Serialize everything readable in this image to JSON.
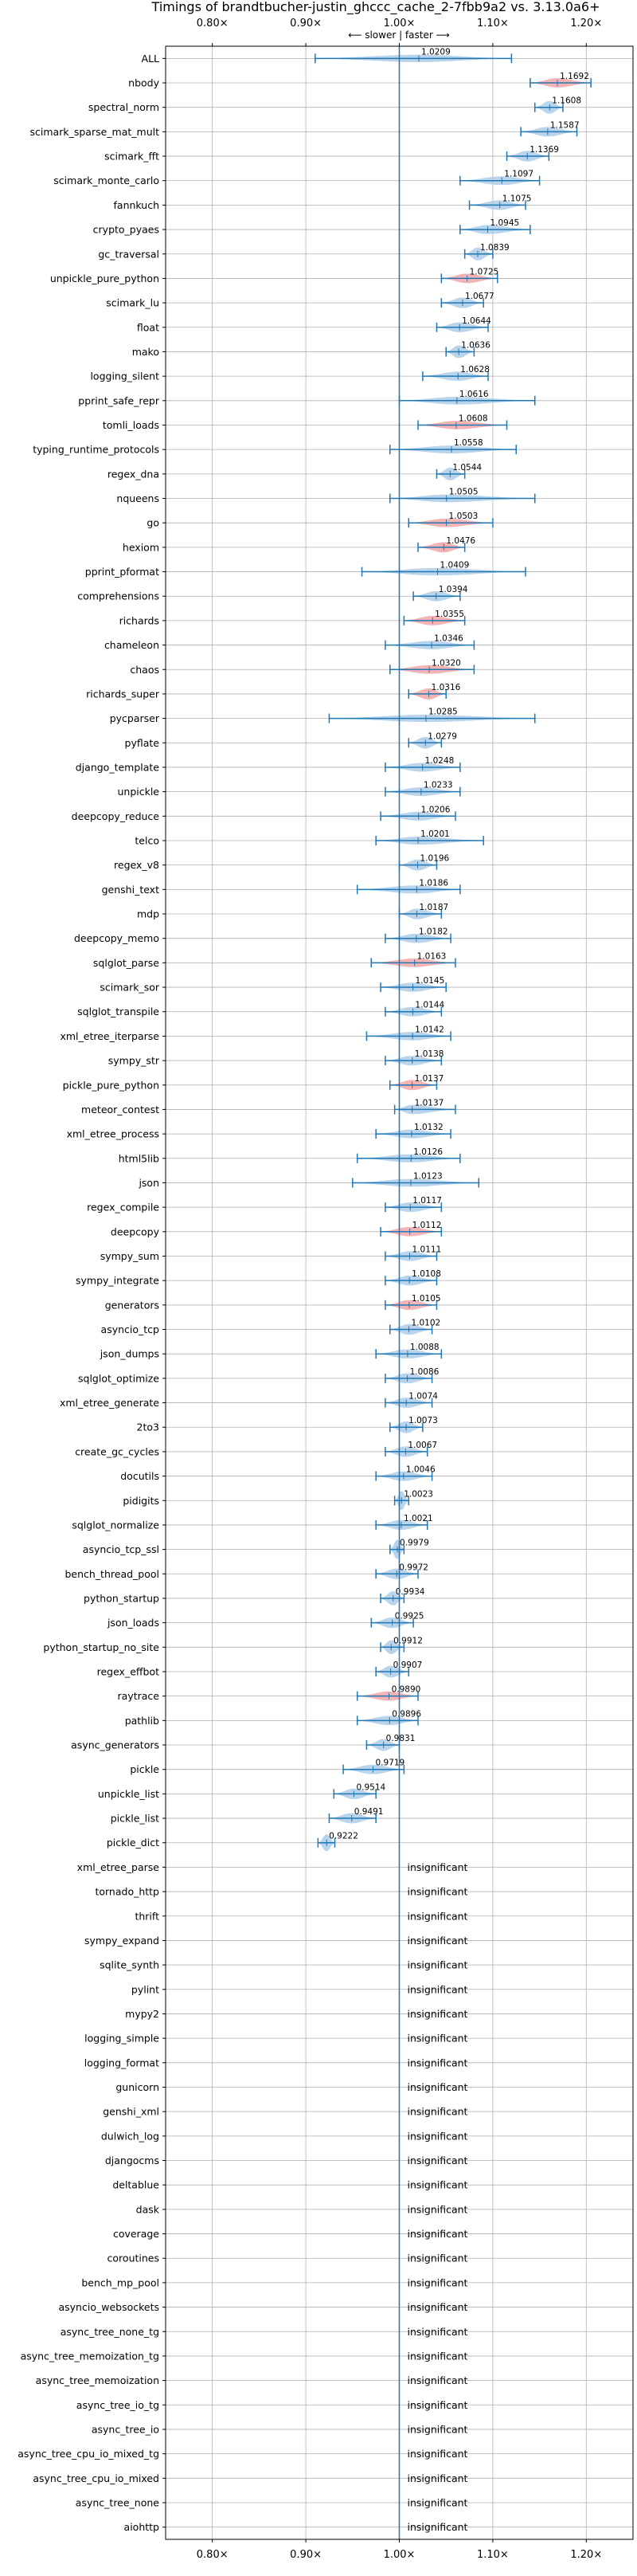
{
  "chart_data": {
    "type": "violin",
    "title": "Timings of brandtbucher-justin_ghccc_cache_2-7fbb9a2 vs. 3.13.0a6+",
    "direction_label": "⟵ slower | faster ⟶",
    "xlim": [
      0.75,
      1.25
    ],
    "xticks": [
      0.8,
      0.9,
      1.0,
      1.1,
      1.2
    ],
    "xtick_labels": [
      "0.80×",
      "0.90×",
      "1.00×",
      "1.10×",
      "1.20×"
    ],
    "reference_line": 1.0,
    "grid": true,
    "colors": {
      "faster": "#1f77b4",
      "significant": "#f4a6a6",
      "normal": "#aecde8",
      "axis": "#000000",
      "grid": "#b0b0b0"
    },
    "insignificant_label": "insignificant",
    "benchmarks": [
      {
        "name": "ALL",
        "value": 1.0209,
        "label": "1.0209",
        "low": 0.91,
        "high": 1.12,
        "hl": false
      },
      {
        "name": "nbody",
        "value": 1.1692,
        "label": "1.1692",
        "low": 1.14,
        "high": 1.205,
        "hl": true
      },
      {
        "name": "spectral_norm",
        "value": 1.1608,
        "label": "1.1608",
        "low": 1.145,
        "high": 1.175,
        "hl": false
      },
      {
        "name": "scimark_sparse_mat_mult",
        "value": 1.1587,
        "label": "1.1587",
        "low": 1.13,
        "high": 1.19,
        "hl": false
      },
      {
        "name": "scimark_fft",
        "value": 1.1369,
        "label": "1.1369",
        "low": 1.115,
        "high": 1.16,
        "hl": false
      },
      {
        "name": "scimark_monte_carlo",
        "value": 1.1097,
        "label": "1.1097",
        "low": 1.065,
        "high": 1.15,
        "hl": false
      },
      {
        "name": "fannkuch",
        "value": 1.1075,
        "label": "1.1075",
        "low": 1.075,
        "high": 1.135,
        "hl": false
      },
      {
        "name": "crypto_pyaes",
        "value": 1.0945,
        "label": "1.0945",
        "low": 1.065,
        "high": 1.14,
        "hl": false
      },
      {
        "name": "gc_traversal",
        "value": 1.0839,
        "label": "1.0839",
        "low": 1.07,
        "high": 1.1,
        "hl": false
      },
      {
        "name": "unpickle_pure_python",
        "value": 1.0725,
        "label": "1.0725",
        "low": 1.045,
        "high": 1.105,
        "hl": true
      },
      {
        "name": "scimark_lu",
        "value": 1.0677,
        "label": "1.0677",
        "low": 1.045,
        "high": 1.09,
        "hl": false
      },
      {
        "name": "float",
        "value": 1.0644,
        "label": "1.0644",
        "low": 1.04,
        "high": 1.095,
        "hl": false
      },
      {
        "name": "mako",
        "value": 1.0636,
        "label": "1.0636",
        "low": 1.05,
        "high": 1.08,
        "hl": false
      },
      {
        "name": "logging_silent",
        "value": 1.0628,
        "label": "1.0628",
        "low": 1.025,
        "high": 1.095,
        "hl": false
      },
      {
        "name": "pprint_safe_repr",
        "value": 1.0616,
        "label": "1.0616",
        "low": 1.0,
        "high": 1.145,
        "hl": false
      },
      {
        "name": "tomli_loads",
        "value": 1.0608,
        "label": "1.0608",
        "low": 1.02,
        "high": 1.115,
        "hl": true
      },
      {
        "name": "typing_runtime_protocols",
        "value": 1.0558,
        "label": "1.0558",
        "low": 0.99,
        "high": 1.125,
        "hl": false
      },
      {
        "name": "regex_dna",
        "value": 1.0544,
        "label": "1.0544",
        "low": 1.04,
        "high": 1.07,
        "hl": false
      },
      {
        "name": "nqueens",
        "value": 1.0505,
        "label": "1.0505",
        "low": 0.99,
        "high": 1.145,
        "hl": false
      },
      {
        "name": "go",
        "value": 1.0503,
        "label": "1.0503",
        "low": 1.01,
        "high": 1.1,
        "hl": true
      },
      {
        "name": "hexiom",
        "value": 1.0476,
        "label": "1.0476",
        "low": 1.02,
        "high": 1.07,
        "hl": true
      },
      {
        "name": "pprint_pformat",
        "value": 1.0409,
        "label": "1.0409",
        "low": 0.96,
        "high": 1.135,
        "hl": false
      },
      {
        "name": "comprehensions",
        "value": 1.0394,
        "label": "1.0394",
        "low": 1.015,
        "high": 1.065,
        "hl": false
      },
      {
        "name": "richards",
        "value": 1.0355,
        "label": "1.0355",
        "low": 1.005,
        "high": 1.07,
        "hl": true
      },
      {
        "name": "chameleon",
        "value": 1.0346,
        "label": "1.0346",
        "low": 0.985,
        "high": 1.08,
        "hl": false
      },
      {
        "name": "chaos",
        "value": 1.032,
        "label": "1.0320",
        "low": 0.99,
        "high": 1.08,
        "hl": true
      },
      {
        "name": "richards_super",
        "value": 1.0316,
        "label": "1.0316",
        "low": 1.01,
        "high": 1.05,
        "hl": true
      },
      {
        "name": "pycparser",
        "value": 1.0285,
        "label": "1.0285",
        "low": 0.925,
        "high": 1.145,
        "hl": false
      },
      {
        "name": "pyflate",
        "value": 1.0279,
        "label": "1.0279",
        "low": 1.01,
        "high": 1.045,
        "hl": false
      },
      {
        "name": "django_template",
        "value": 1.0248,
        "label": "1.0248",
        "low": 0.985,
        "high": 1.065,
        "hl": false
      },
      {
        "name": "unpickle",
        "value": 1.0233,
        "label": "1.0233",
        "low": 0.985,
        "high": 1.065,
        "hl": false
      },
      {
        "name": "deepcopy_reduce",
        "value": 1.0206,
        "label": "1.0206",
        "low": 0.98,
        "high": 1.06,
        "hl": false
      },
      {
        "name": "telco",
        "value": 1.0201,
        "label": "1.0201",
        "low": 0.975,
        "high": 1.09,
        "hl": false
      },
      {
        "name": "regex_v8",
        "value": 1.0196,
        "label": "1.0196",
        "low": 1.0,
        "high": 1.04,
        "hl": false
      },
      {
        "name": "genshi_text",
        "value": 1.0186,
        "label": "1.0186",
        "low": 0.955,
        "high": 1.065,
        "hl": false
      },
      {
        "name": "mdp",
        "value": 1.0187,
        "label": "1.0187",
        "low": 1.0,
        "high": 1.045,
        "hl": false
      },
      {
        "name": "deepcopy_memo",
        "value": 1.0182,
        "label": "1.0182",
        "low": 0.985,
        "high": 1.055,
        "hl": false
      },
      {
        "name": "sqlglot_parse",
        "value": 1.0163,
        "label": "1.0163",
        "low": 0.97,
        "high": 1.06,
        "hl": true
      },
      {
        "name": "scimark_sor",
        "value": 1.0145,
        "label": "1.0145",
        "low": 0.98,
        "high": 1.05,
        "hl": false
      },
      {
        "name": "sqlglot_transpile",
        "value": 1.0144,
        "label": "1.0144",
        "low": 0.985,
        "high": 1.045,
        "hl": false
      },
      {
        "name": "xml_etree_iterparse",
        "value": 1.0142,
        "label": "1.0142",
        "low": 0.965,
        "high": 1.055,
        "hl": false
      },
      {
        "name": "sympy_str",
        "value": 1.0138,
        "label": "1.0138",
        "low": 0.985,
        "high": 1.045,
        "hl": false
      },
      {
        "name": "pickle_pure_python",
        "value": 1.0137,
        "label": "1.0137",
        "low": 0.99,
        "high": 1.04,
        "hl": true
      },
      {
        "name": "meteor_contest",
        "value": 1.0137,
        "label": "1.0137",
        "low": 0.995,
        "high": 1.06,
        "hl": false
      },
      {
        "name": "xml_etree_process",
        "value": 1.0132,
        "label": "1.0132",
        "low": 0.975,
        "high": 1.055,
        "hl": false
      },
      {
        "name": "html5lib",
        "value": 1.0126,
        "label": "1.0126",
        "low": 0.955,
        "high": 1.065,
        "hl": false
      },
      {
        "name": "json",
        "value": 1.0123,
        "label": "1.0123",
        "low": 0.95,
        "high": 1.085,
        "hl": false
      },
      {
        "name": "regex_compile",
        "value": 1.0117,
        "label": "1.0117",
        "low": 0.985,
        "high": 1.045,
        "hl": false
      },
      {
        "name": "deepcopy",
        "value": 1.0112,
        "label": "1.0112",
        "low": 0.98,
        "high": 1.045,
        "hl": true
      },
      {
        "name": "sympy_sum",
        "value": 1.0111,
        "label": "1.0111",
        "low": 0.985,
        "high": 1.04,
        "hl": false
      },
      {
        "name": "sympy_integrate",
        "value": 1.0108,
        "label": "1.0108",
        "low": 0.985,
        "high": 1.04,
        "hl": false
      },
      {
        "name": "generators",
        "value": 1.0105,
        "label": "1.0105",
        "low": 0.985,
        "high": 1.04,
        "hl": true
      },
      {
        "name": "asyncio_tcp",
        "value": 1.0102,
        "label": "1.0102",
        "low": 0.99,
        "high": 1.035,
        "hl": false
      },
      {
        "name": "json_dumps",
        "value": 1.0088,
        "label": "1.0088",
        "low": 0.975,
        "high": 1.045,
        "hl": false
      },
      {
        "name": "sqlglot_optimize",
        "value": 1.0086,
        "label": "1.0086",
        "low": 0.985,
        "high": 1.035,
        "hl": false
      },
      {
        "name": "xml_etree_generate",
        "value": 1.0074,
        "label": "1.0074",
        "low": 0.985,
        "high": 1.035,
        "hl": false
      },
      {
        "name": "2to3",
        "value": 1.0073,
        "label": "1.0073",
        "low": 0.99,
        "high": 1.025,
        "hl": false
      },
      {
        "name": "create_gc_cycles",
        "value": 1.0067,
        "label": "1.0067",
        "low": 0.985,
        "high": 1.03,
        "hl": false
      },
      {
        "name": "docutils",
        "value": 1.0046,
        "label": "1.0046",
        "low": 0.975,
        "high": 1.035,
        "hl": false
      },
      {
        "name": "pidigits",
        "value": 1.0023,
        "label": "1.0023",
        "low": 0.995,
        "high": 1.01,
        "hl": false
      },
      {
        "name": "sqlglot_normalize",
        "value": 1.0021,
        "label": "1.0021",
        "low": 0.975,
        "high": 1.03,
        "hl": false
      },
      {
        "name": "asyncio_tcp_ssl",
        "value": 0.9979,
        "label": "0.9979",
        "low": 0.99,
        "high": 1.005,
        "hl": false
      },
      {
        "name": "bench_thread_pool",
        "value": 0.9972,
        "label": "0.9972",
        "low": 0.975,
        "high": 1.02,
        "hl": false
      },
      {
        "name": "python_startup",
        "value": 0.9934,
        "label": "0.9934",
        "low": 0.98,
        "high": 1.005,
        "hl": false
      },
      {
        "name": "json_loads",
        "value": 0.9925,
        "label": "0.9925",
        "low": 0.97,
        "high": 1.015,
        "hl": false
      },
      {
        "name": "python_startup_no_site",
        "value": 0.9912,
        "label": "0.9912",
        "low": 0.98,
        "high": 1.005,
        "hl": false
      },
      {
        "name": "regex_effbot",
        "value": 0.9907,
        "label": "0.9907",
        "low": 0.975,
        "high": 1.01,
        "hl": false
      },
      {
        "name": "raytrace",
        "value": 0.989,
        "label": "0.9890",
        "low": 0.955,
        "high": 1.02,
        "hl": true
      },
      {
        "name": "pathlib",
        "value": 0.9896,
        "label": "0.9896",
        "low": 0.955,
        "high": 1.02,
        "hl": false
      },
      {
        "name": "async_generators",
        "value": 0.9831,
        "label": "0.9831",
        "low": 0.965,
        "high": 1.0,
        "hl": false
      },
      {
        "name": "pickle",
        "value": 0.9719,
        "label": "0.9719",
        "low": 0.94,
        "high": 1.005,
        "hl": false
      },
      {
        "name": "unpickle_list",
        "value": 0.9514,
        "label": "0.9514",
        "low": 0.93,
        "high": 0.975,
        "hl": false
      },
      {
        "name": "pickle_list",
        "value": 0.9491,
        "label": "0.9491",
        "low": 0.925,
        "high": 0.975,
        "hl": false
      },
      {
        "name": "pickle_dict",
        "value": 0.9222,
        "label": "0.9222",
        "low": 0.913,
        "high": 0.931,
        "hl": false
      },
      {
        "name": "xml_etree_parse",
        "insignificant": true
      },
      {
        "name": "tornado_http",
        "insignificant": true
      },
      {
        "name": "thrift",
        "insignificant": true
      },
      {
        "name": "sympy_expand",
        "insignificant": true
      },
      {
        "name": "sqlite_synth",
        "insignificant": true
      },
      {
        "name": "pylint",
        "insignificant": true
      },
      {
        "name": "mypy2",
        "insignificant": true
      },
      {
        "name": "logging_simple",
        "insignificant": true
      },
      {
        "name": "logging_format",
        "insignificant": true
      },
      {
        "name": "gunicorn",
        "insignificant": true
      },
      {
        "name": "genshi_xml",
        "insignificant": true
      },
      {
        "name": "dulwich_log",
        "insignificant": true
      },
      {
        "name": "djangocms",
        "insignificant": true
      },
      {
        "name": "deltablue",
        "insignificant": true
      },
      {
        "name": "dask",
        "insignificant": true
      },
      {
        "name": "coverage",
        "insignificant": true
      },
      {
        "name": "coroutines",
        "insignificant": true
      },
      {
        "name": "bench_mp_pool",
        "insignificant": true
      },
      {
        "name": "asyncio_websockets",
        "insignificant": true
      },
      {
        "name": "async_tree_none_tg",
        "insignificant": true
      },
      {
        "name": "async_tree_memoization_tg",
        "insignificant": true
      },
      {
        "name": "async_tree_memoization",
        "insignificant": true
      },
      {
        "name": "async_tree_io_tg",
        "insignificant": true
      },
      {
        "name": "async_tree_io",
        "insignificant": true
      },
      {
        "name": "async_tree_cpu_io_mixed_tg",
        "insignificant": true
      },
      {
        "name": "async_tree_cpu_io_mixed",
        "insignificant": true
      },
      {
        "name": "async_tree_none",
        "insignificant": true
      },
      {
        "name": "aiohttp",
        "insignificant": true
      }
    ]
  }
}
